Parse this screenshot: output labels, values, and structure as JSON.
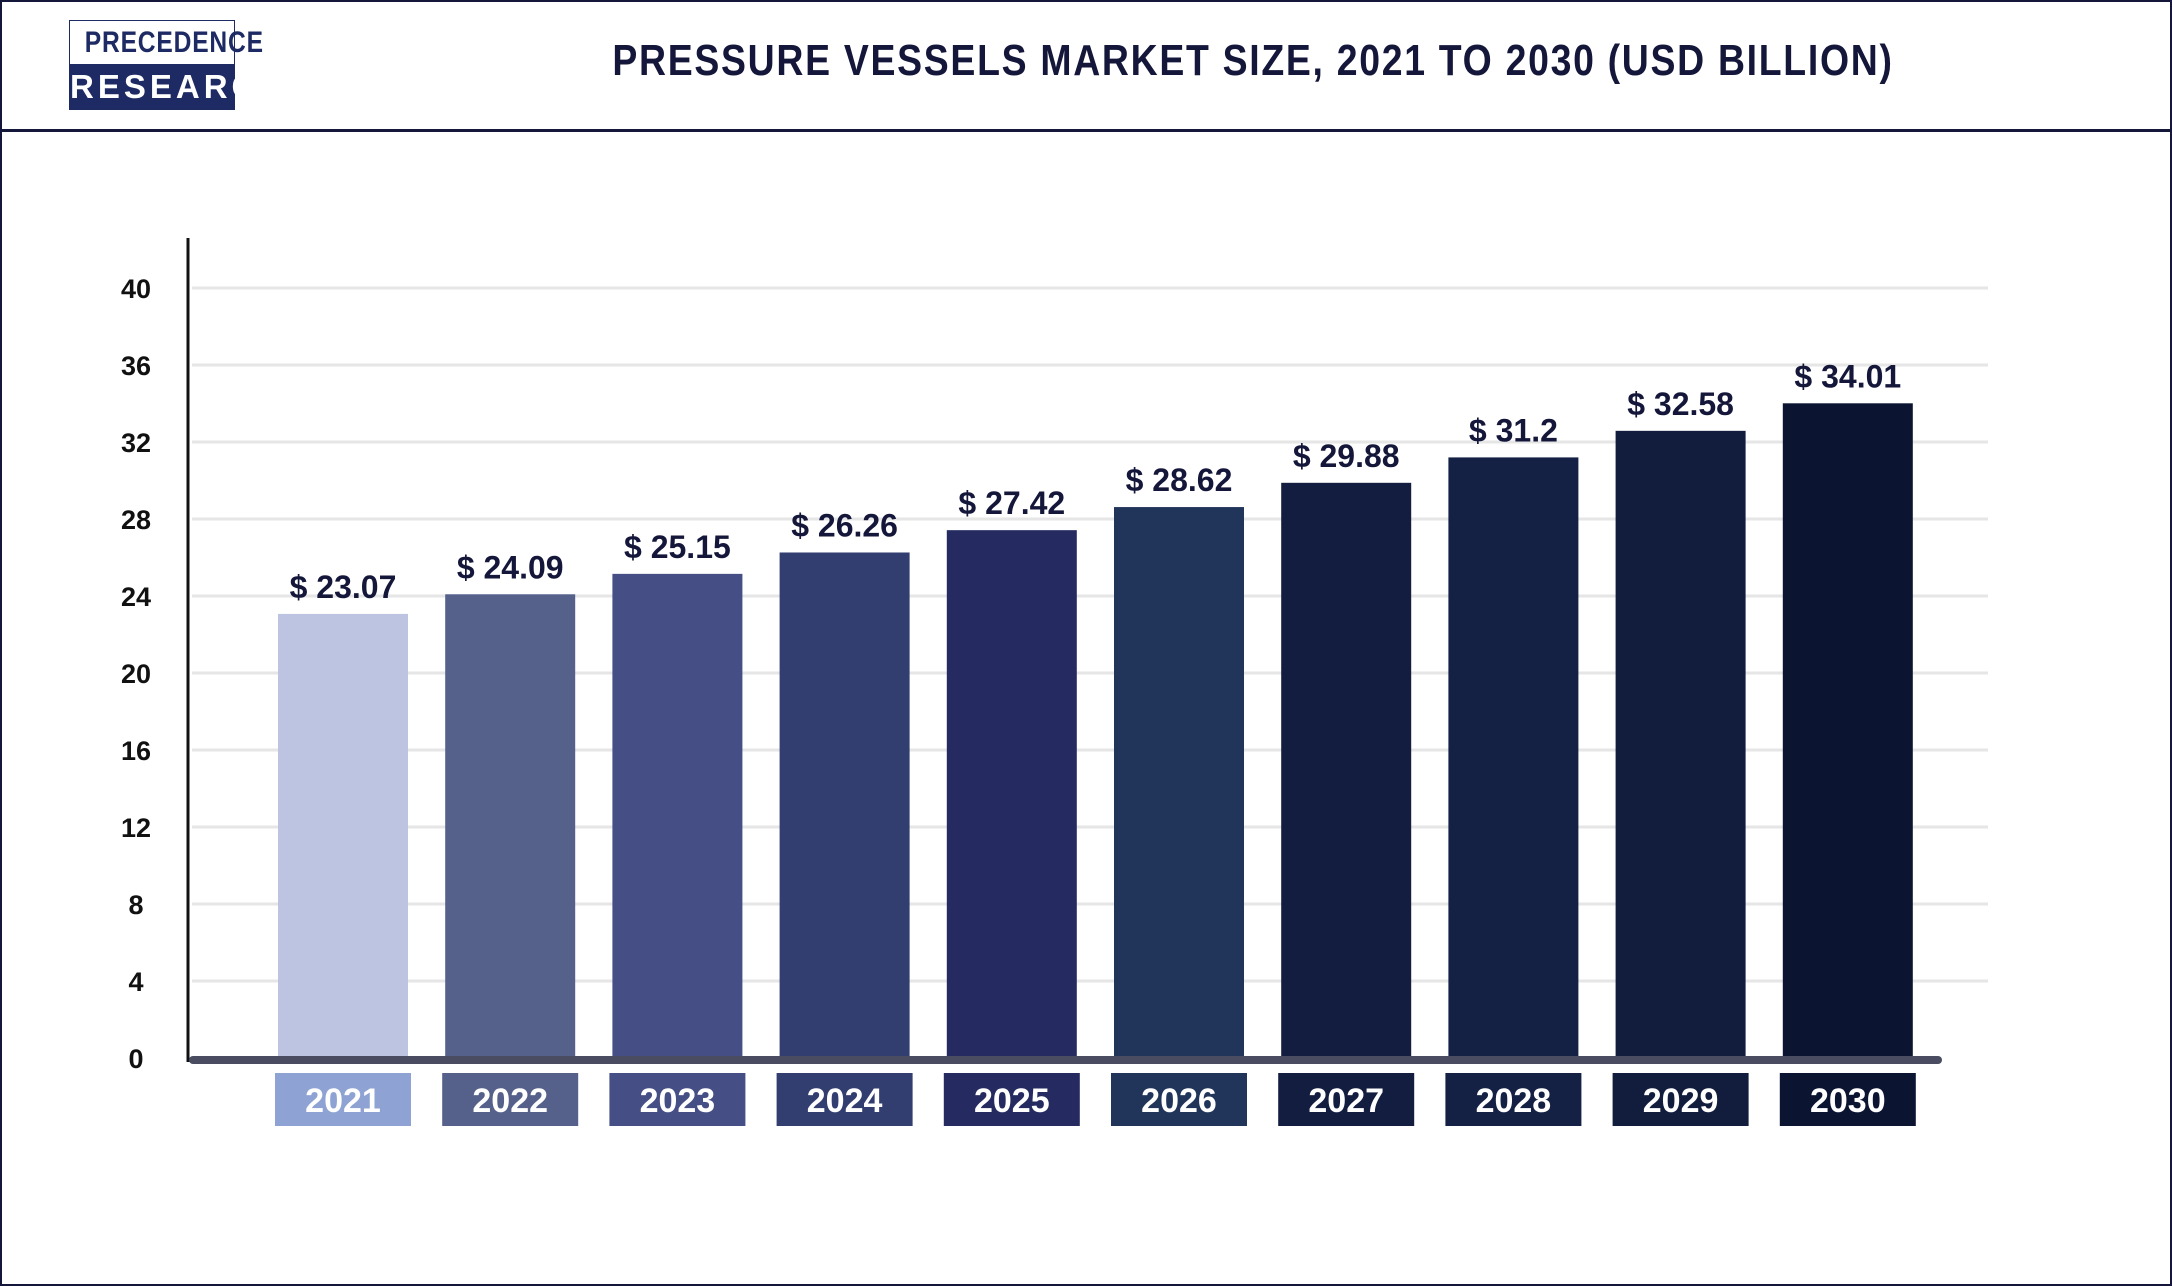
{
  "header": {
    "logo_line1": "PRECEDENCE",
    "logo_line2": "RESEARCH",
    "title": "PRESSURE VESSELS MARKET SIZE, 2021 TO 2030 (USD BILLION)"
  },
  "chart_data": {
    "type": "bar",
    "title": "PRESSURE VESSELS MARKET SIZE, 2021 TO 2030 (USD BILLION)",
    "categories": [
      "2021",
      "2022",
      "2023",
      "2024",
      "2025",
      "2026",
      "2027",
      "2028",
      "2029",
      "2030"
    ],
    "values": [
      23.07,
      24.09,
      25.15,
      26.26,
      27.42,
      28.62,
      29.88,
      31.2,
      32.58,
      34.01
    ],
    "data_labels": [
      "$ 23.07",
      "$ 24.09",
      "$ 25.15",
      "$ 26.26",
      "$ 27.42",
      "$ 28.62",
      "$ 29.88",
      "$ 31.2",
      "$ 32.58",
      "$ 34.01"
    ],
    "yticks": [
      0,
      4,
      8,
      12,
      16,
      20,
      24,
      28,
      32,
      36,
      40
    ],
    "ylim": [
      0,
      40
    ],
    "grid": true,
    "legend": "none",
    "bar_colors": [
      "#bcc4e2",
      "#55618a",
      "#454e85",
      "#323d70",
      "#252b60",
      "#21345a",
      "#131d40",
      "#142145",
      "#121d3e",
      "#0b1431"
    ],
    "label_box_colors": [
      "#8ea3d3",
      "#55618a",
      "#454e85",
      "#323d70",
      "#252b60",
      "#21345a",
      "#131d40",
      "#142145",
      "#121d3e",
      "#0b1431"
    ]
  }
}
